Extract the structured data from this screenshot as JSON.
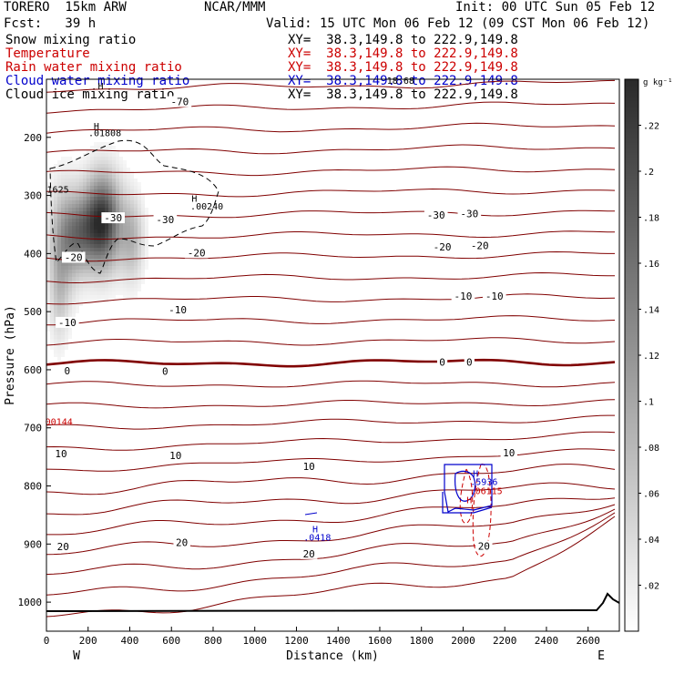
{
  "header": {
    "model": "TORERO  15km ARW",
    "org": "NCAR/MMM",
    "init": "Init: 00 UTC Sun 05 Feb 12",
    "fcst": "Fcst:   39 h",
    "valid": "Valid: 15 UTC Mon 06 Feb 12 (09 CST Mon 06 Feb 12)"
  },
  "fields": [
    {
      "name": "Snow mixing ratio",
      "xy": "XY=  38.3,149.8 to 222.9,149.8",
      "color": "#000000"
    },
    {
      "name": "Temperature",
      "xy": "XY=  38.3,149.8 to 222.9,149.8",
      "color": "#cc0000"
    },
    {
      "name": "Rain water mixing ratio",
      "xy": "XY=  38.3,149.8 to 222.9,149.8",
      "color": "#cc0000"
    },
    {
      "name": "Cloud water mixing ratio",
      "xy": "XY=  38.3,149.8 to 222.9,149.8",
      "color": "#0000cc"
    },
    {
      "name": "Cloud ice mixing ratio",
      "xy": "XY=  38.3,149.8 to 222.9,149.8",
      "color": "#000000"
    }
  ],
  "chart_data": {
    "type": "heatmap",
    "xlabel": "Distance (km)",
    "ylabel": "Pressure (hPa)",
    "xlim": [
      0,
      2750
    ],
    "ylim_pressure": [
      1050,
      100
    ],
    "x_ticks": [
      0,
      200,
      400,
      600,
      800,
      1000,
      1200,
      1400,
      1600,
      1800,
      2000,
      2200,
      2400,
      2600
    ],
    "y_ticks": [
      200,
      300,
      400,
      500,
      600,
      700,
      800,
      900,
      1000
    ],
    "end_labels": {
      "left": "W",
      "right": "E"
    },
    "colorbar": {
      "unit": "g kg⁻¹",
      "min": 0,
      "max": 0.24,
      "ticks": [
        0.02,
        0.04,
        0.06,
        0.08,
        0.1,
        0.12,
        0.14,
        0.16,
        0.18,
        0.2,
        0.22
      ],
      "tick_labels": [
        ".02",
        ".04",
        ".06",
        ".08",
        ".1",
        ".12",
        ".14",
        ".16",
        ".18",
        ".2",
        ".22"
      ]
    },
    "snow_blobs": [
      {
        "x": 270,
        "p": 345,
        "sx": 60,
        "sp": 55,
        "amp": 0.23
      },
      {
        "x": 160,
        "p": 365,
        "sx": 55,
        "sp": 45,
        "amp": 0.12
      },
      {
        "x": 80,
        "p": 385,
        "sx": 50,
        "sp": 70,
        "amp": 0.09
      },
      {
        "x": 410,
        "p": 375,
        "sx": 40,
        "sp": 50,
        "amp": 0.08
      },
      {
        "x": 60,
        "p": 480,
        "sx": 30,
        "sp": 60,
        "amp": 0.04
      }
    ],
    "isotherm_labels": [
      {
        "text": "-70",
        "x": 640,
        "p": 140
      },
      {
        "text": "-30",
        "x": 320,
        "p": 340
      },
      {
        "text": "-30",
        "x": 570,
        "p": 343
      },
      {
        "text": "-30",
        "x": 1870,
        "p": 335
      },
      {
        "text": "-30",
        "x": 2030,
        "p": 333
      },
      {
        "text": "-20",
        "x": 130,
        "p": 408
      },
      {
        "text": "-20",
        "x": 720,
        "p": 400
      },
      {
        "text": "-20",
        "x": 1900,
        "p": 390
      },
      {
        "text": "-20",
        "x": 2080,
        "p": 388
      },
      {
        "text": "-10",
        "x": 100,
        "p": 520
      },
      {
        "text": "-10",
        "x": 630,
        "p": 498
      },
      {
        "text": "-10",
        "x": 2000,
        "p": 475
      },
      {
        "text": "-10",
        "x": 2150,
        "p": 475
      },
      {
        "text": "0",
        "x": 100,
        "p": 603
      },
      {
        "text": "0",
        "x": 570,
        "p": 604
      },
      {
        "text": "0",
        "x": 1900,
        "p": 588
      },
      {
        "text": "0",
        "x": 2030,
        "p": 588
      },
      {
        "text": "10",
        "x": 70,
        "p": 746
      },
      {
        "text": "10",
        "x": 620,
        "p": 749
      },
      {
        "text": "10",
        "x": 1260,
        "p": 768
      },
      {
        "text": "10",
        "x": 2220,
        "p": 744
      },
      {
        "text": "20",
        "x": 80,
        "p": 906
      },
      {
        "text": "20",
        "x": 650,
        "p": 899
      },
      {
        "text": "20",
        "x": 1260,
        "p": 918
      },
      {
        "text": "20",
        "x": 2100,
        "p": 905
      }
    ],
    "annotations": [
      {
        "text": "H",
        "x": 240,
        "p": 186,
        "color": "#000000"
      },
      {
        "text": ".01808",
        "x": 280,
        "p": 198,
        "color": "#000000"
      },
      {
        "text": "H",
        "x": 710,
        "p": 311,
        "color": "#000000"
      },
      {
        "text": ".00240",
        "x": 770,
        "p": 324,
        "color": "#000000"
      },
      {
        "text": "1625",
        "x": 55,
        "p": 295,
        "color": "#000000"
      },
      {
        "text": "00144",
        "x": 60,
        "p": 695,
        "color": "#cc0000"
      },
      {
        "text": "H",
        "x": 1290,
        "p": 880,
        "color": "#0000cc"
      },
      {
        "text": ".0418",
        "x": 1300,
        "p": 894,
        "color": "#0000cc"
      },
      {
        "text": "H",
        "x": 2060,
        "p": 784,
        "color": "#0000cc"
      },
      {
        "text": ".5936",
        "x": 2100,
        "p": 798,
        "color": "#0000cc"
      },
      {
        "text": "H",
        "x": 2030,
        "p": 830,
        "color": "#cc0000"
      },
      {
        "text": ".06115",
        "x": 2110,
        "p": 814,
        "color": "#cc0000"
      },
      {
        "text": "H",
        "x": 260,
        "p": 117,
        "color": "#000000"
      },
      {
        "text": "18.68",
        "x": 1700,
        "p": 108,
        "color": "#000000"
      }
    ]
  }
}
